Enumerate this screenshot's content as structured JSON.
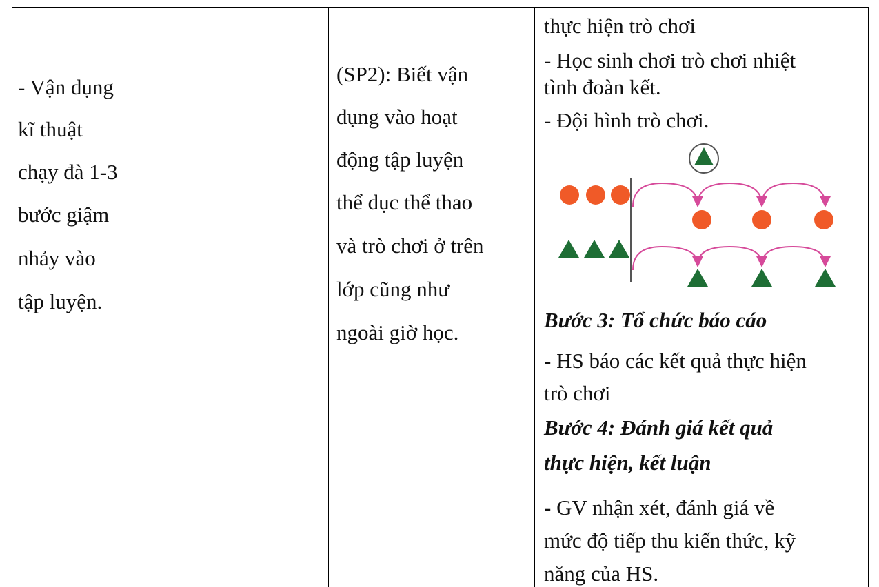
{
  "table": {
    "rows": [
      [
        [
          "- Vận dụng",
          "kĩ thuật",
          "chạy đà 1-3",
          "bước giậm",
          "nhảy  vào",
          "tập luyện."
        ],
        [],
        [
          "(SP2): Biết vận",
          "dụng vào hoạt",
          "động tập luyện",
          "thể dục thể thao",
          "và trò chơi ở trên",
          "lớp cũng như",
          "ngoài giờ học."
        ],
        [
          {
            "text": "thực hiện trò chơi",
            "style": "normal"
          },
          {
            "text": "-  Học sinh chơi trò chơi nhiệt",
            "style": "normal"
          },
          {
            "text": "tình đoàn kết.",
            "style": "normal"
          },
          {
            "text": "- Đội hình trò chơi.",
            "style": "normal"
          },
          {
            "text": "Bước 3: Tổ chức báo cáo",
            "style": "heading"
          },
          {
            "text": "- HS báo các kết quả thực hiện",
            "style": "normal"
          },
          {
            "text": "trò chơi",
            "style": "normal"
          },
          {
            "text": "Bước 4: Đánh giá kết quả",
            "style": "heading"
          },
          {
            "text": "thực hiện, kết luận",
            "style": "heading"
          },
          {
            "text": "- GV nhận xét, đánh giá về",
            "style": "normal"
          },
          {
            "text": "mức độ tiếp thu kiến thức, kỹ",
            "style": "normal"
          },
          {
            "text": "năng của HS.",
            "style": "normal"
          }
        ]
      ]
    ]
  }
}
